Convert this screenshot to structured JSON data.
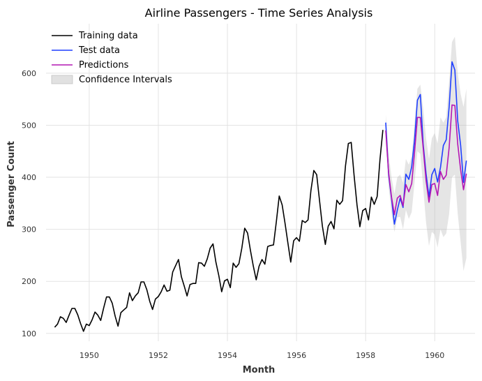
{
  "chart_data": {
    "type": "line",
    "title": "Airline Passengers - Time Series Analysis",
    "xlabel": "Month",
    "ylabel": "Passenger Count",
    "xlim": [
      "1948-10",
      "1961-03"
    ],
    "ylim": [
      85,
      695
    ],
    "x_ticks": [
      "1950",
      "1952",
      "1954",
      "1956",
      "1958",
      "1960"
    ],
    "y_ticks": [
      100,
      200,
      300,
      400,
      500,
      600
    ],
    "grid": true,
    "legend_position": "top-left",
    "legend": [
      "Training data",
      "Test data",
      "Predictions",
      "Confidence Intervals"
    ],
    "series": [
      {
        "name": "Training data",
        "color": "#000000",
        "x_start": "1949-01",
        "x_end": "1958-07",
        "values": [
          112,
          118,
          132,
          129,
          121,
          135,
          148,
          148,
          136,
          119,
          104,
          118,
          115,
          126,
          141,
          135,
          125,
          149,
          170,
          170,
          158,
          133,
          114,
          140,
          145,
          150,
          178,
          163,
          172,
          178,
          199,
          199,
          184,
          162,
          146,
          166,
          171,
          180,
          193,
          181,
          183,
          218,
          230,
          242,
          209,
          191,
          172,
          194,
          196,
          196,
          236,
          235,
          229,
          243,
          264,
          272,
          237,
          211,
          180,
          201,
          204,
          188,
          235,
          227,
          234,
          264,
          302,
          293,
          259,
          229,
          203,
          229,
          242,
          233,
          267,
          269,
          270,
          315,
          364,
          347,
          312,
          274,
          237,
          278,
          284,
          277,
          317,
          313,
          318,
          374,
          413,
          405,
          355,
          306,
          271,
          306,
          315,
          301,
          356,
          348,
          355,
          422,
          465,
          467,
          404,
          347,
          305,
          336,
          340,
          318,
          362,
          348,
          363,
          435,
          491
        ]
      },
      {
        "name": "Test data",
        "color": "#1f3fff",
        "x_start": "1958-08",
        "x_end": "1960-12",
        "values": [
          505,
          404,
          359,
          310,
          337,
          360,
          342,
          406,
          396,
          420,
          472,
          548,
          559,
          463,
          407,
          362,
          405,
          417,
          391,
          419,
          461,
          472,
          535,
          622,
          606,
          508,
          461,
          390,
          432
        ]
      },
      {
        "name": "Predictions",
        "color": "#b416b4",
        "x_start": "1958-08",
        "x_end": "1960-12",
        "values": [
          490,
          408,
          362,
          328,
          360,
          365,
          345,
          386,
          372,
          388,
          448,
          515,
          515,
          456,
          394,
          352,
          386,
          388,
          365,
          411,
          396,
          404,
          457,
          539,
          538,
          464,
          414,
          376,
          407
        ]
      },
      {
        "name": "Confidence Intervals",
        "color": "#b4b4b4",
        "x_start": "1958-08",
        "x_end": "1960-12",
        "lower": [
          465,
          380,
          330,
          295,
          323,
          324,
          300,
          337,
          320,
          333,
          390,
          450,
          445,
          380,
          313,
          268,
          295,
          290,
          265,
          300,
          285,
          292,
          330,
          400,
          405,
          330,
          275,
          220,
          245
        ],
        "upper": [
          520,
          445,
          400,
          368,
          400,
          405,
          390,
          435,
          424,
          440,
          505,
          570,
          578,
          532,
          475,
          435,
          475,
          485,
          465,
          515,
          505,
          515,
          585,
          660,
          670,
          600,
          560,
          535,
          570
        ]
      }
    ]
  }
}
